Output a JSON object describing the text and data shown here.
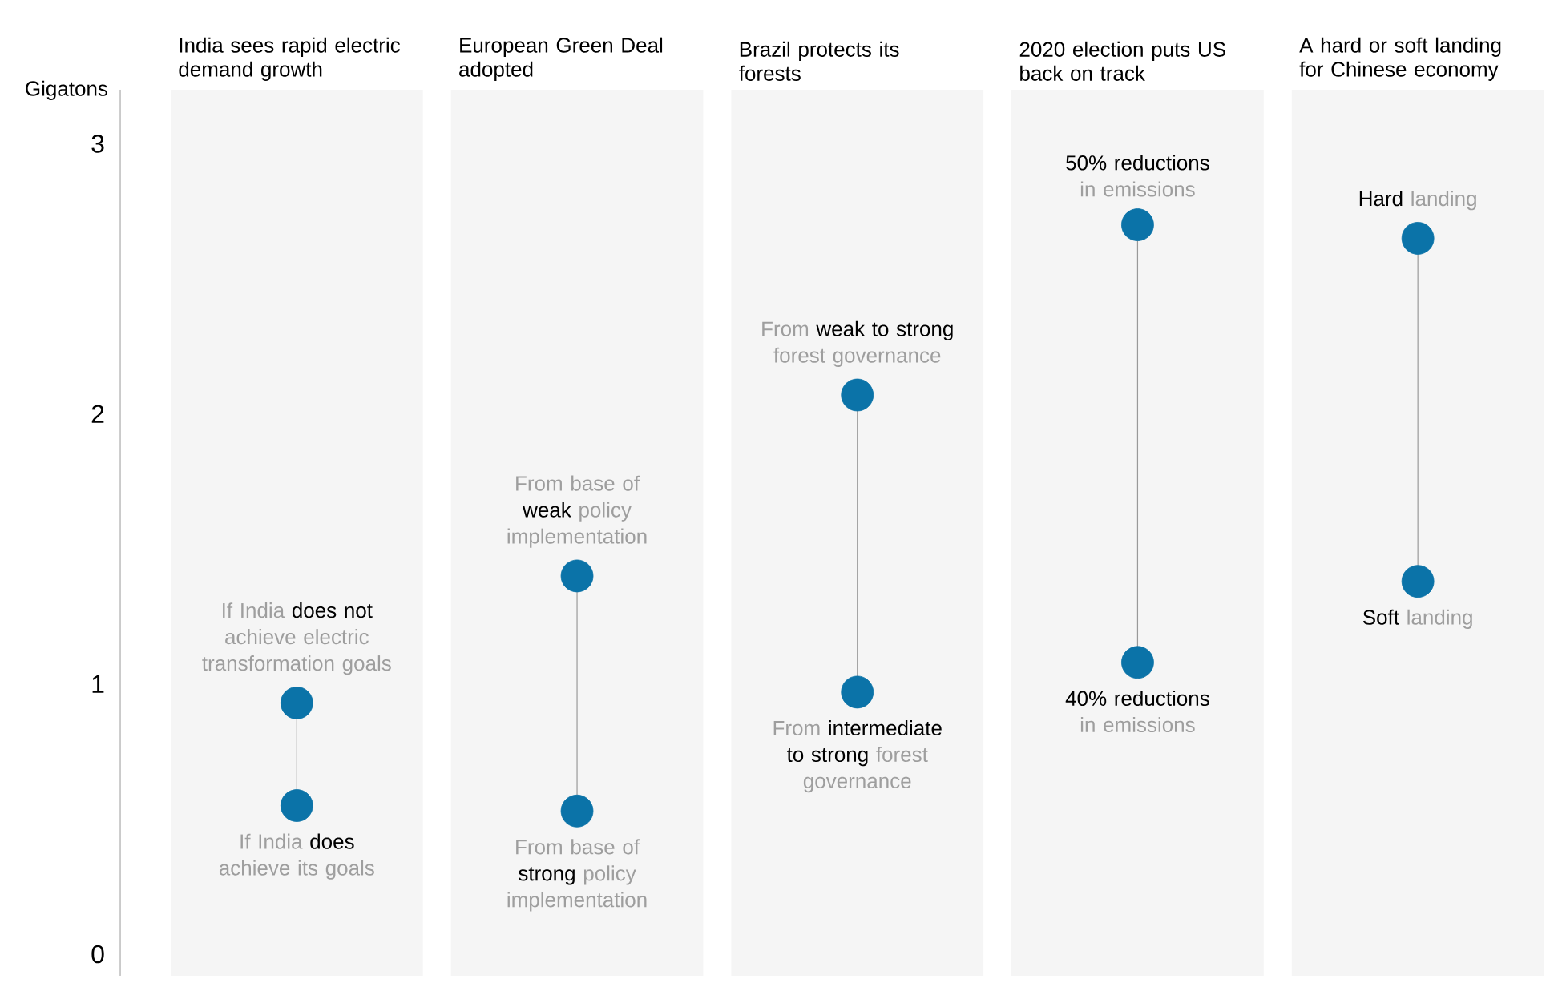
{
  "chart_data": {
    "type": "scatter",
    "ylabel": "Gigatons",
    "ylim": [
      -0.08,
      3.2
    ],
    "yticks": [
      0,
      1,
      2,
      3
    ],
    "marker": "circle",
    "grid": false,
    "bands": [
      {
        "axis": "x",
        "from": "India sees rapid electric demand growth",
        "to": "India sees rapid electric demand growth",
        "color": "#f5f5f5"
      },
      {
        "axis": "x",
        "from": "European Green Deal adopted",
        "to": "European Green Deal adopted",
        "color": "#f5f5f5"
      },
      {
        "axis": "x",
        "from": "Brazil protects its forests",
        "to": "Brazil protects its forests",
        "color": "#f5f5f5"
      },
      {
        "axis": "x",
        "from": "2020 election puts US back on track",
        "to": "2020 election puts US back on track",
        "color": "#f5f5f5"
      },
      {
        "axis": "x",
        "from": "A hard or soft landing for Chinese economy",
        "to": "A hard or soft landing for Chinese economy",
        "color": "#f5f5f5"
      }
    ],
    "categories": [
      "India sees rapid electric demand growth",
      "European Green Deal adopted",
      "Brazil protects its forests",
      "2020 election puts US back on track",
      "A hard or soft landing for Chinese economy"
    ],
    "series": [
      {
        "color": "#0b73a8",
        "values": [
          0.93,
          1.4,
          2.07,
          2.7,
          2.65
        ]
      },
      {
        "color": "#0b73a8",
        "values": [
          0.55,
          0.53,
          0.97,
          1.08,
          1.38
        ]
      }
    ],
    "annotations": [
      {
        "text": "If India **does not** achieve electric transformation goals",
        "x": "India sees rapid electric demand growth",
        "y": 0.93
      },
      {
        "text": "If India **does** achieve its goals",
        "x": "India sees rapid electric demand growth",
        "y": 0.55
      },
      {
        "text": "From base of **weak** policy implementation",
        "x": "European Green Deal adopted",
        "y": 1.4
      },
      {
        "text": "From base of **strong** policy implementation",
        "x": "European Green Deal adopted",
        "y": 0.53
      },
      {
        "text": "From **weak to strong** forest governance",
        "x": "Brazil protects its forests",
        "y": 2.07
      },
      {
        "text": "From **intermediate to strong** forest governance",
        "x": "Brazil protects its forests",
        "y": 0.97
      },
      {
        "text": "**50% reductions** in emissions",
        "x": "2020 election puts US back on track",
        "y": 2.7
      },
      {
        "text": "**40% reductions** in emissions",
        "x": "2020 election puts US back on track",
        "y": 1.08
      },
      {
        "text": "**Hard** landing",
        "x": "A hard or soft landing for Chinese economy",
        "y": 2.65
      },
      {
        "text": "**Soft** landing",
        "x": "A hard or soft landing for Chinese economy",
        "y": 1.38
      }
    ]
  }
}
